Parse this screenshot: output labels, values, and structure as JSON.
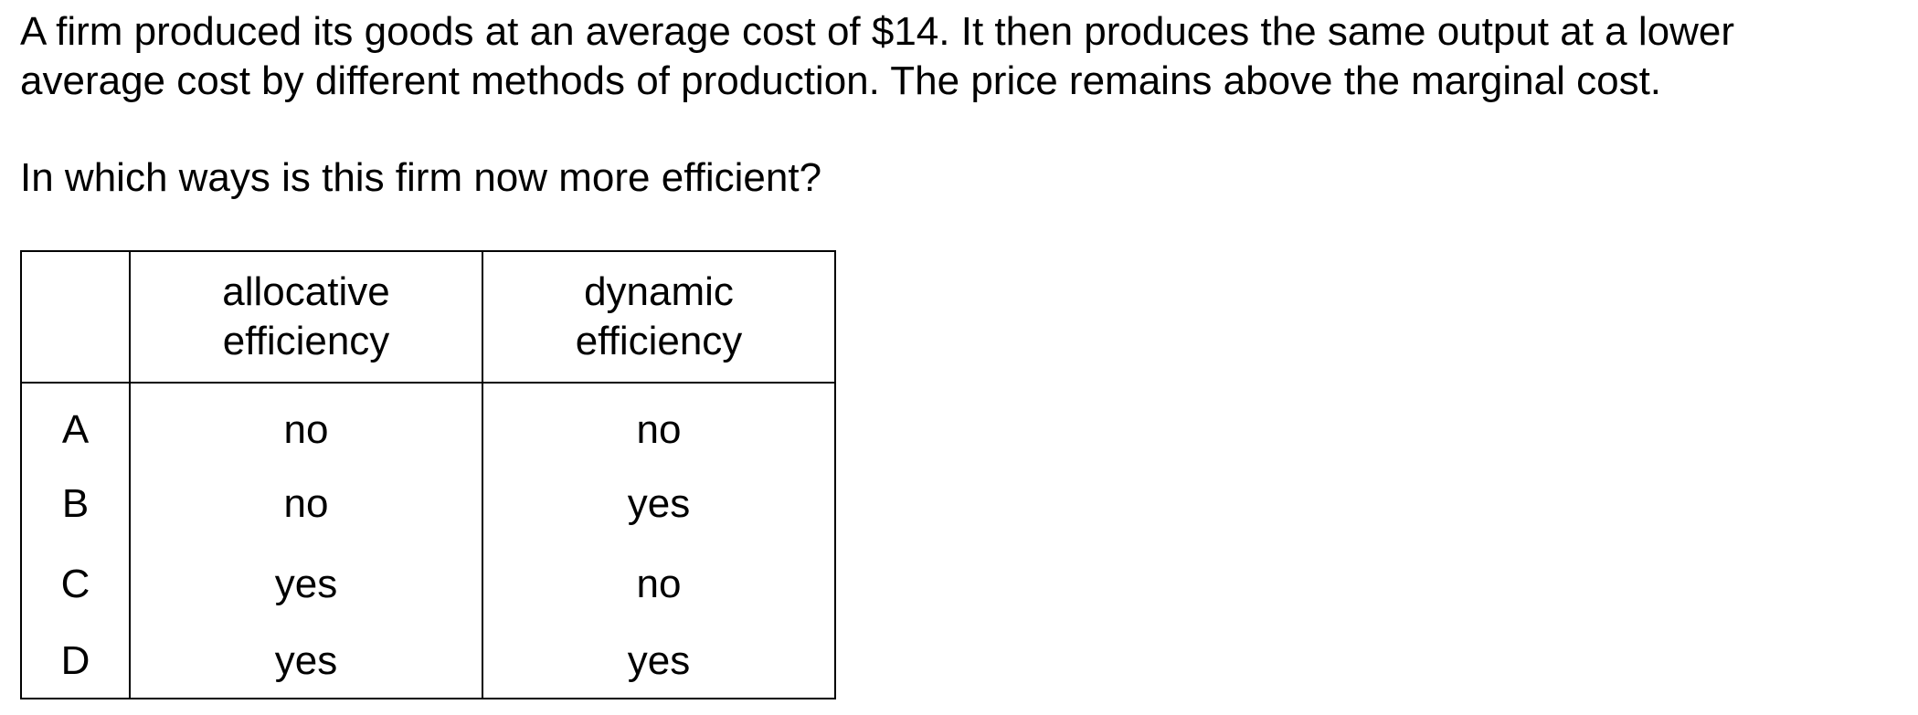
{
  "stem": {
    "line1": "A firm produced its goods at an average cost of $14. It then produces the same output at a lower",
    "line2": "average cost by different methods of production. The price remains above the marginal cost."
  },
  "question": "In which ways is this firm now more efficient?",
  "table": {
    "headers": [
      {
        "line1": "allocative",
        "line2": "efficiency"
      },
      {
        "line1": "dynamic",
        "line2": "efficiency"
      }
    ],
    "rows": [
      {
        "key": "A",
        "allocative": "no",
        "dynamic": "no"
      },
      {
        "key": "B",
        "allocative": "no",
        "dynamic": "yes"
      },
      {
        "key": "C",
        "allocative": "yes",
        "dynamic": "no"
      },
      {
        "key": "D",
        "allocative": "yes",
        "dynamic": "yes"
      }
    ]
  }
}
